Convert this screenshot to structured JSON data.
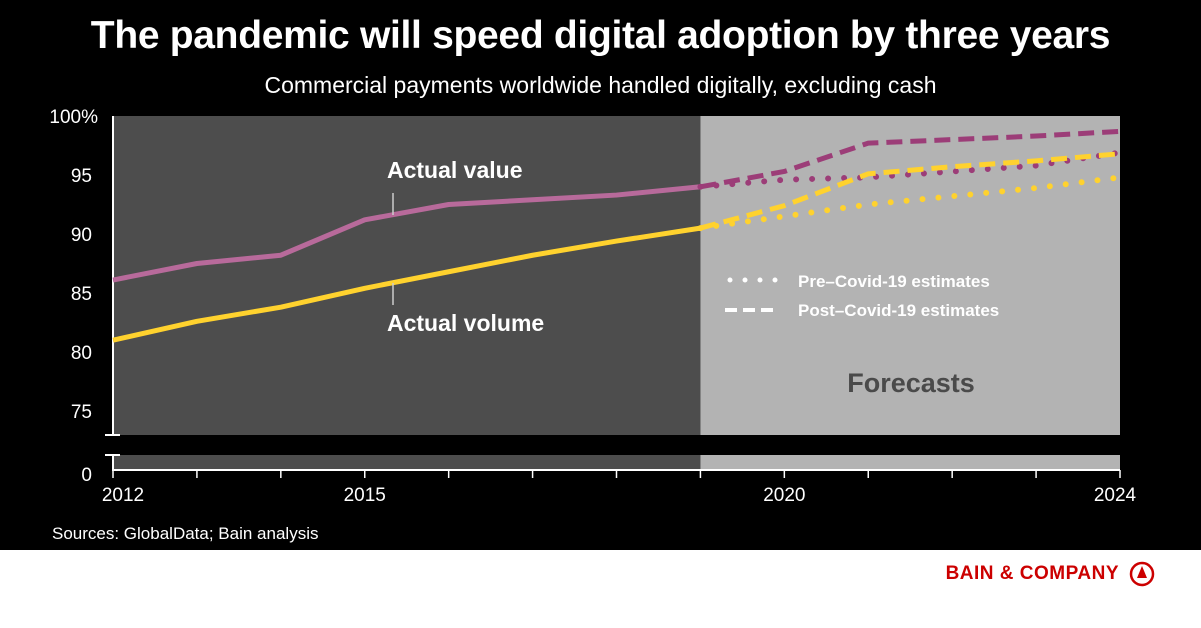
{
  "header": {
    "title": "The pandemic will speed digital adoption by three years",
    "subtitle": "Commercial payments worldwide handled digitally, excluding cash"
  },
  "footer": {
    "source": "Sources: GlobalData; Bain analysis",
    "logo_text": "BAIN & COMPANY"
  },
  "chart_data": {
    "type": "line",
    "title": "The pandemic will speed digital adoption by three years",
    "subtitle": "Commercial payments worldwide handled digitally, excluding cash",
    "x_ticks": [
      "2012",
      "2015",
      "2020",
      "2024"
    ],
    "xlim": [
      2012,
      2024
    ],
    "y_ticks": [
      "100%",
      "95",
      "90",
      "85",
      "80",
      "75",
      "0"
    ],
    "ylim": [
      73,
      100
    ],
    "y_axis_break": "between 0 and 75",
    "grid": false,
    "shaded_regions": [
      {
        "from": 2012,
        "to": 2019,
        "color": "#4d4d4d"
      },
      {
        "from": 2019,
        "to": 2024,
        "color": "#b3b3b3",
        "label": "Forecasts"
      }
    ],
    "annotations": [
      "Actual value",
      "Actual volume",
      "Forecasts"
    ],
    "legend": {
      "placement": "center-right",
      "entries": [
        {
          "label": "Pre–Covid-19 estimates",
          "style": "dotted"
        },
        {
          "label": "Post–Covid-19 estimates",
          "style": "dashed"
        }
      ]
    },
    "series": [
      {
        "name": "Actual value",
        "style": "solid",
        "color": "#b86a9b",
        "x": [
          2012,
          2013,
          2014,
          2015,
          2016,
          2017,
          2018,
          2019
        ],
        "y": [
          86.1,
          87.5,
          88.2,
          91.2,
          92.5,
          92.9,
          93.3,
          94.0
        ]
      },
      {
        "name": "Actual volume",
        "style": "solid",
        "color": "#ffd22e",
        "x": [
          2012,
          2013,
          2014,
          2015,
          2016,
          2017,
          2018,
          2019
        ],
        "y": [
          81.0,
          82.6,
          83.8,
          85.4,
          86.8,
          88.2,
          89.4,
          90.5
        ]
      },
      {
        "style": "dashed",
        "color": "#9c3d78",
        "x": [
          2019,
          2020,
          2021,
          2022,
          2023,
          2024
        ],
        "y": [
          94.0,
          95.3,
          97.7,
          98.0,
          98.3,
          98.7
        ]
      },
      {
        "style": "dotted",
        "color": "#9c3d78",
        "x": [
          2019,
          2020,
          2021,
          2022,
          2023,
          2024
        ],
        "y": [
          94.0,
          94.6,
          94.8,
          95.3,
          95.8,
          96.9
        ]
      },
      {
        "style": "dashed",
        "color": "#ffd22e",
        "x": [
          2019,
          2020,
          2021,
          2022,
          2023,
          2024
        ],
        "y": [
          90.5,
          92.4,
          95.1,
          95.7,
          96.2,
          96.8
        ]
      },
      {
        "style": "dotted",
        "color": "#ffd22e",
        "x": [
          2019,
          2020,
          2021,
          2022,
          2023,
          2024
        ],
        "y": [
          90.5,
          91.5,
          92.5,
          93.2,
          93.9,
          94.8
        ]
      }
    ]
  }
}
